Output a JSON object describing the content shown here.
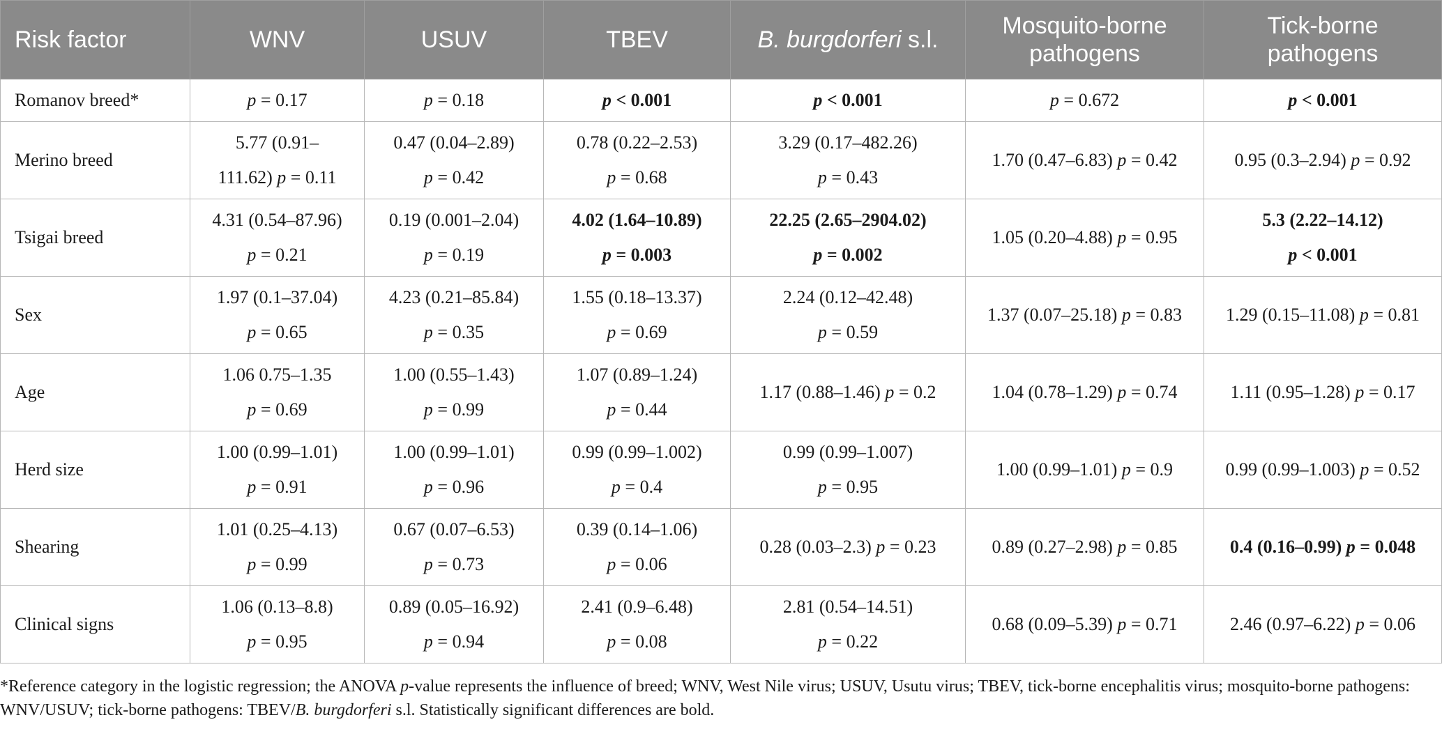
{
  "table": {
    "headers": [
      "Risk factor",
      "WNV",
      "USUV",
      "TBEV",
      "B. burgdorferi s.l.",
      "Mosquito-borne pathogens",
      "Tick-borne pathogens"
    ],
    "rows": [
      {
        "factor": "Romanov breed*",
        "cells": [
          {
            "lines": [
              "p = 0.17"
            ],
            "bold": false
          },
          {
            "lines": [
              "p = 0.18"
            ],
            "bold": false
          },
          {
            "lines": [
              "p < 0.001"
            ],
            "bold": true
          },
          {
            "lines": [
              "p < 0.001"
            ],
            "bold": true
          },
          {
            "lines": [
              "p = 0.672"
            ],
            "bold": false
          },
          {
            "lines": [
              "p < 0.001"
            ],
            "bold": true
          }
        ]
      },
      {
        "factor": "Merino breed",
        "cells": [
          {
            "lines": [
              "5.77 (0.91–",
              "111.62) p = 0.11"
            ],
            "bold": false
          },
          {
            "lines": [
              "0.47 (0.04–2.89)",
              "p = 0.42"
            ],
            "bold": false
          },
          {
            "lines": [
              "0.78 (0.22–2.53)",
              "p = 0.68"
            ],
            "bold": false
          },
          {
            "lines": [
              "3.29 (0.17–482.26)",
              "p = 0.43"
            ],
            "bold": false
          },
          {
            "lines": [
              "1.70 (0.47–6.83) p = 0.42"
            ],
            "bold": false
          },
          {
            "lines": [
              "0.95 (0.3–2.94) p = 0.92"
            ],
            "bold": false
          }
        ]
      },
      {
        "factor": "Tsigai breed",
        "cells": [
          {
            "lines": [
              "4.31 (0.54–87.96)",
              "p = 0.21"
            ],
            "bold": false
          },
          {
            "lines": [
              "0.19 (0.001–2.04)",
              "p = 0.19"
            ],
            "bold": false
          },
          {
            "lines": [
              "4.02 (1.64–10.89)",
              "p = 0.003"
            ],
            "bold": true
          },
          {
            "lines": [
              "22.25 (2.65–2904.02)",
              "p = 0.002"
            ],
            "bold": true
          },
          {
            "lines": [
              "1.05 (0.20–4.88) p = 0.95"
            ],
            "bold": false
          },
          {
            "lines": [
              "5.3 (2.22–14.12)",
              "p < 0.001"
            ],
            "bold": true
          }
        ]
      },
      {
        "factor": "Sex",
        "cells": [
          {
            "lines": [
              "1.97 (0.1–37.04)",
              "p = 0.65"
            ],
            "bold": false
          },
          {
            "lines": [
              "4.23 (0.21–85.84)",
              "p = 0.35"
            ],
            "bold": false
          },
          {
            "lines": [
              "1.55 (0.18–13.37)",
              "p = 0.69"
            ],
            "bold": false
          },
          {
            "lines": [
              "2.24 (0.12–42.48)",
              "p = 0.59"
            ],
            "bold": false
          },
          {
            "lines": [
              "1.37 (0.07–25.18) p = 0.83"
            ],
            "bold": false
          },
          {
            "lines": [
              "1.29 (0.15–11.08) p = 0.81"
            ],
            "bold": false
          }
        ]
      },
      {
        "factor": "Age",
        "cells": [
          {
            "lines": [
              "1.06 0.75–1.35",
              "p = 0.69"
            ],
            "bold": false
          },
          {
            "lines": [
              "1.00 (0.55–1.43)",
              "p = 0.99"
            ],
            "bold": false
          },
          {
            "lines": [
              "1.07 (0.89–1.24)",
              "p = 0.44"
            ],
            "bold": false
          },
          {
            "lines": [
              "1.17 (0.88–1.46) p = 0.2"
            ],
            "bold": false
          },
          {
            "lines": [
              "1.04 (0.78–1.29) p = 0.74"
            ],
            "bold": false
          },
          {
            "lines": [
              "1.11 (0.95–1.28) p = 0.17"
            ],
            "bold": false
          }
        ]
      },
      {
        "factor": "Herd size",
        "cells": [
          {
            "lines": [
              "1.00 (0.99–1.01)",
              "p = 0.91"
            ],
            "bold": false
          },
          {
            "lines": [
              "1.00 (0.99–1.01)",
              "p = 0.96"
            ],
            "bold": false
          },
          {
            "lines": [
              "0.99 (0.99–1.002)",
              "p = 0.4"
            ],
            "bold": false
          },
          {
            "lines": [
              "0.99 (0.99–1.007)",
              "p = 0.95"
            ],
            "bold": false
          },
          {
            "lines": [
              "1.00 (0.99–1.01) p = 0.9"
            ],
            "bold": false
          },
          {
            "lines": [
              "0.99 (0.99–1.003) p = 0.52"
            ],
            "bold": false
          }
        ]
      },
      {
        "factor": "Shearing",
        "cells": [
          {
            "lines": [
              "1.01 (0.25–4.13)",
              "p = 0.99"
            ],
            "bold": false
          },
          {
            "lines": [
              "0.67 (0.07–6.53)",
              "p = 0.73"
            ],
            "bold": false
          },
          {
            "lines": [
              "0.39 (0.14–1.06)",
              "p = 0.06"
            ],
            "bold": false
          },
          {
            "lines": [
              "0.28 (0.03–2.3) p = 0.23"
            ],
            "bold": false
          },
          {
            "lines": [
              "0.89 (0.27–2.98) p = 0.85"
            ],
            "bold": false
          },
          {
            "lines": [
              "0.4 (0.16–0.99) p = 0.048"
            ],
            "bold": true
          }
        ]
      },
      {
        "factor": "Clinical signs",
        "cells": [
          {
            "lines": [
              "1.06 (0.13–8.8)",
              "p = 0.95"
            ],
            "bold": false
          },
          {
            "lines": [
              "0.89 (0.05–16.92)",
              "p = 0.94"
            ],
            "bold": false
          },
          {
            "lines": [
              "2.41 (0.9–6.48)",
              "p = 0.08"
            ],
            "bold": false
          },
          {
            "lines": [
              "2.81 (0.54–14.51)",
              "p = 0.22"
            ],
            "bold": false
          },
          {
            "lines": [
              "0.68 (0.09–5.39) p = 0.71"
            ],
            "bold": false
          },
          {
            "lines": [
              "2.46 (0.97–6.22) p = 0.06"
            ],
            "bold": false
          }
        ]
      }
    ]
  },
  "footnote": "*Reference category in the logistic regression; the ANOVA p-value represents the influence of breed; WNV, West Nile virus; USUV, Usutu virus; TBEV, tick-borne encephalitis virus; mosquito-borne pathogens: WNV/USUV; tick-borne pathogens: TBEV/B. burgdorferi s.l. Statistically significant differences are bold."
}
